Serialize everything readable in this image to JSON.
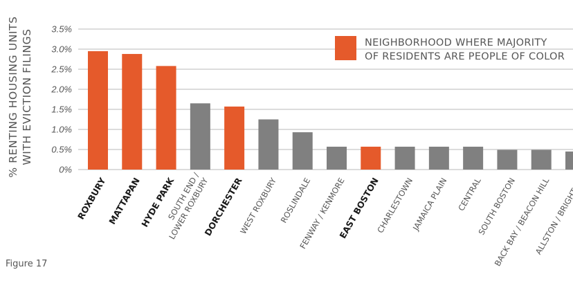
{
  "chart_data": {
    "type": "bar",
    "ylabel": [
      "% RENTING HOUSING UNITS",
      "WITH EVICTION FILINGS"
    ],
    "xlabel": "",
    "ylim": [
      0,
      3.5
    ],
    "yticks": [
      0,
      0.5,
      1.0,
      1.5,
      2.0,
      2.5,
      3.0,
      3.5
    ],
    "ytick_labels": [
      "0%",
      "0.5%",
      "1.0%",
      "1.5%",
      "2.0%",
      "2.5%",
      "3.0%",
      "3.5%"
    ],
    "grid": true,
    "legend": {
      "position": "top-right",
      "entries": [
        {
          "label_lines": [
            "NEIGHBORHOOD WHERE MAJORITY",
            "OF RESIDENTS ARE PEOPLE OF COLOR"
          ],
          "color": "#e55a2b"
        }
      ]
    },
    "colors": {
      "poc_majority": "#e55a2b",
      "other": "#808080"
    },
    "categories": [
      {
        "label": [
          "ROXBURY"
        ],
        "value": 2.95,
        "poc_majority": true
      },
      {
        "label": [
          "MATTAPAN"
        ],
        "value": 2.88,
        "poc_majority": true
      },
      {
        "label": [
          "HYDE PARK"
        ],
        "value": 2.58,
        "poc_majority": true
      },
      {
        "label": [
          "SOUTH END /",
          "LOWER ROXBURY"
        ],
        "value": 1.65,
        "poc_majority": false
      },
      {
        "label": [
          "DORCHESTER"
        ],
        "value": 1.57,
        "poc_majority": true
      },
      {
        "label": [
          "WEST ROXBURY"
        ],
        "value": 1.25,
        "poc_majority": false
      },
      {
        "label": [
          "ROSLINDALE"
        ],
        "value": 0.93,
        "poc_majority": false
      },
      {
        "label": [
          "FENWAY / KENMORE"
        ],
        "value": 0.57,
        "poc_majority": false
      },
      {
        "label": [
          "EAST BOSTON"
        ],
        "value": 0.57,
        "poc_majority": true
      },
      {
        "label": [
          "CHARLESTOWN"
        ],
        "value": 0.57,
        "poc_majority": false
      },
      {
        "label": [
          "JAMAICA PLAIN"
        ],
        "value": 0.57,
        "poc_majority": false
      },
      {
        "label": [
          "CENTRAL"
        ],
        "value": 0.57,
        "poc_majority": false
      },
      {
        "label": [
          "SOUTH BOSTON"
        ],
        "value": 0.49,
        "poc_majority": false
      },
      {
        "label": [
          "BACK BAY / BEACON HILL"
        ],
        "value": 0.49,
        "poc_majority": false
      },
      {
        "label": [
          "ALLSTON / BRIGHTON"
        ],
        "value": 0.45,
        "poc_majority": false
      }
    ]
  },
  "caption": "Figure 17"
}
